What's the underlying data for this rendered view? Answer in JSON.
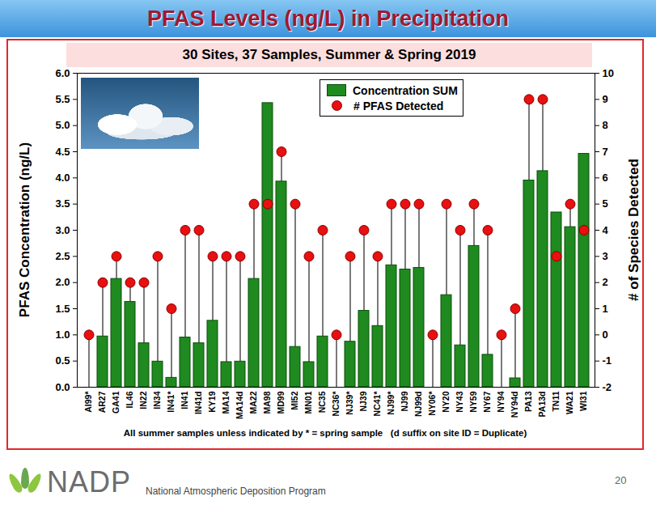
{
  "chart_data": {
    "type": "bar",
    "title": "PFAS Levels (ng/L) in Precipitation",
    "subtitle": "30 Sites, 37 Samples, Summer & Spring 2019",
    "note": "All summer samples unless indicated by * = spring sample   (d suffix on site ID = Duplicate)",
    "ylabel": "PFAS Concentration (ng/L)",
    "y2label": "# of Species Detected",
    "categories": [
      "AI99*",
      "AR27",
      "GA41",
      "IL46",
      "IN22",
      "IN34",
      "IN41*",
      "IN41",
      "IN41d",
      "KY19",
      "MA14",
      "MA14d",
      "MA22",
      "MA98",
      "MD99",
      "MI52",
      "MN01",
      "NC35",
      "NC36*",
      "NJ39*",
      "NJ39",
      "NC41*",
      "NJ99*",
      "NJ99",
      "NJ99d",
      "NY06*",
      "NY20",
      "NY43",
      "NY59",
      "NY67",
      "NY94",
      "NY94d",
      "PA13",
      "PA13d",
      "TN11",
      "WA21",
      "WI31"
    ],
    "series": [
      {
        "name": "Concentration SUM",
        "type": "bar",
        "color": "#1f8a1f",
        "values": [
          0,
          0.97,
          2.07,
          1.63,
          0.84,
          0.49,
          0.18,
          0.95,
          0.84,
          1.27,
          0.48,
          0.49,
          2.07,
          5.43,
          3.93,
          0.77,
          0.48,
          0.97,
          0,
          0.87,
          1.46,
          1.17,
          2.33,
          2.25,
          2.28,
          0,
          1.76,
          0.8,
          2.7,
          0.62,
          0,
          0.17,
          3.95,
          4.13,
          3.34,
          3.06,
          4.46
        ]
      },
      {
        "name": "# PFAS Detected",
        "type": "lollipop",
        "axis": "y2",
        "marker": "circle",
        "color": "#e81010",
        "values": [
          0,
          2,
          3,
          2,
          2,
          3,
          1,
          4,
          4,
          3,
          3,
          3,
          5,
          5,
          7,
          5,
          3,
          4,
          0,
          3,
          4,
          3,
          5,
          5,
          5,
          0,
          5,
          4,
          5,
          4,
          0,
          1,
          9,
          9,
          3,
          5,
          4
        ]
      }
    ],
    "ylim": [
      0,
      6
    ],
    "yticks": [
      {
        "value": 0,
        "label": "0.0"
      },
      {
        "value": 0.5,
        "label": "0.5"
      },
      {
        "value": 1,
        "label": "1.0"
      },
      {
        "value": 1.5,
        "label": "1.5"
      },
      {
        "value": 2,
        "label": "2.0"
      },
      {
        "value": 2.5,
        "label": "2.5"
      },
      {
        "value": 3,
        "label": "3.0"
      },
      {
        "value": 3.5,
        "label": "3.5"
      },
      {
        "value": 4,
        "label": "4.0"
      },
      {
        "value": 4.5,
        "label": "4.5"
      },
      {
        "value": 5,
        "label": "5.0"
      },
      {
        "value": 5.5,
        "label": "5.5"
      },
      {
        "value": 6,
        "label": "6.0"
      }
    ],
    "y2lim": [
      -2,
      10
    ],
    "y2ticks": [
      -2,
      -1,
      0,
      1,
      2,
      3,
      4,
      5,
      6,
      7,
      8,
      9,
      10
    ],
    "legend": "top",
    "grid": false
  },
  "footer": {
    "logo": "NADP",
    "text": "National Atmospheric Deposition Program",
    "page": "20"
  }
}
